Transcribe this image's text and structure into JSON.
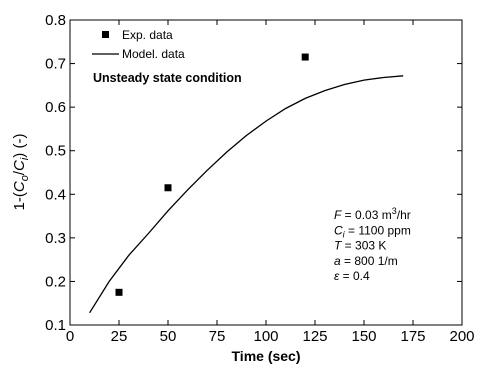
{
  "chart_data": {
    "type": "scatter",
    "xlabel": "Time (sec)",
    "ylabel": {
      "prefix": "1-(",
      "num": "C",
      "num_sub": "o",
      "slash": "/",
      "den": "C",
      "den_sub": "i",
      "suffix": ") (-)"
    },
    "xlim": [
      0,
      200
    ],
    "ylim": [
      0.1,
      0.8
    ],
    "x_ticks": [
      "0",
      "25",
      "50",
      "75",
      "100",
      "125",
      "150",
      "175",
      "200"
    ],
    "y_ticks": [
      "0.1",
      "0.2",
      "0.3",
      "0.4",
      "0.5",
      "0.6",
      "0.7",
      "0.8"
    ],
    "grid": false,
    "legend_position": "top-left",
    "series": [
      {
        "name": "Exp. data",
        "kind": "markers",
        "marker": "square",
        "x": [
          25,
          50,
          120
        ],
        "y": [
          0.175,
          0.415,
          0.715
        ]
      },
      {
        "name": "Model. data",
        "kind": "line",
        "x": [
          10,
          20,
          30,
          40,
          50,
          60,
          70,
          80,
          90,
          100,
          110,
          120,
          130,
          140,
          150,
          160,
          170
        ],
        "y": [
          0.128,
          0.2,
          0.26,
          0.31,
          0.362,
          0.41,
          0.455,
          0.497,
          0.535,
          0.568,
          0.597,
          0.62,
          0.638,
          0.652,
          0.662,
          0.668,
          0.672
        ]
      }
    ],
    "annotation": "Unsteady state condition",
    "parameters": [
      {
        "sym": "F",
        "sub": "",
        "rest": " = 0.03 m",
        "sup": "3",
        "tail": "/hr"
      },
      {
        "sym": "C",
        "sub": "i",
        "rest": " = 1100 ppm",
        "sup": "",
        "tail": ""
      },
      {
        "sym": "T",
        "sub": "",
        "rest": " = 303 K",
        "sup": "",
        "tail": ""
      },
      {
        "sym": "a",
        "sub": "",
        "rest": " = 800 1/m",
        "sup": "",
        "tail": ""
      },
      {
        "sym": "ε",
        "sub": "",
        "rest": " = 0.4",
        "sup": "",
        "tail": ""
      }
    ]
  }
}
